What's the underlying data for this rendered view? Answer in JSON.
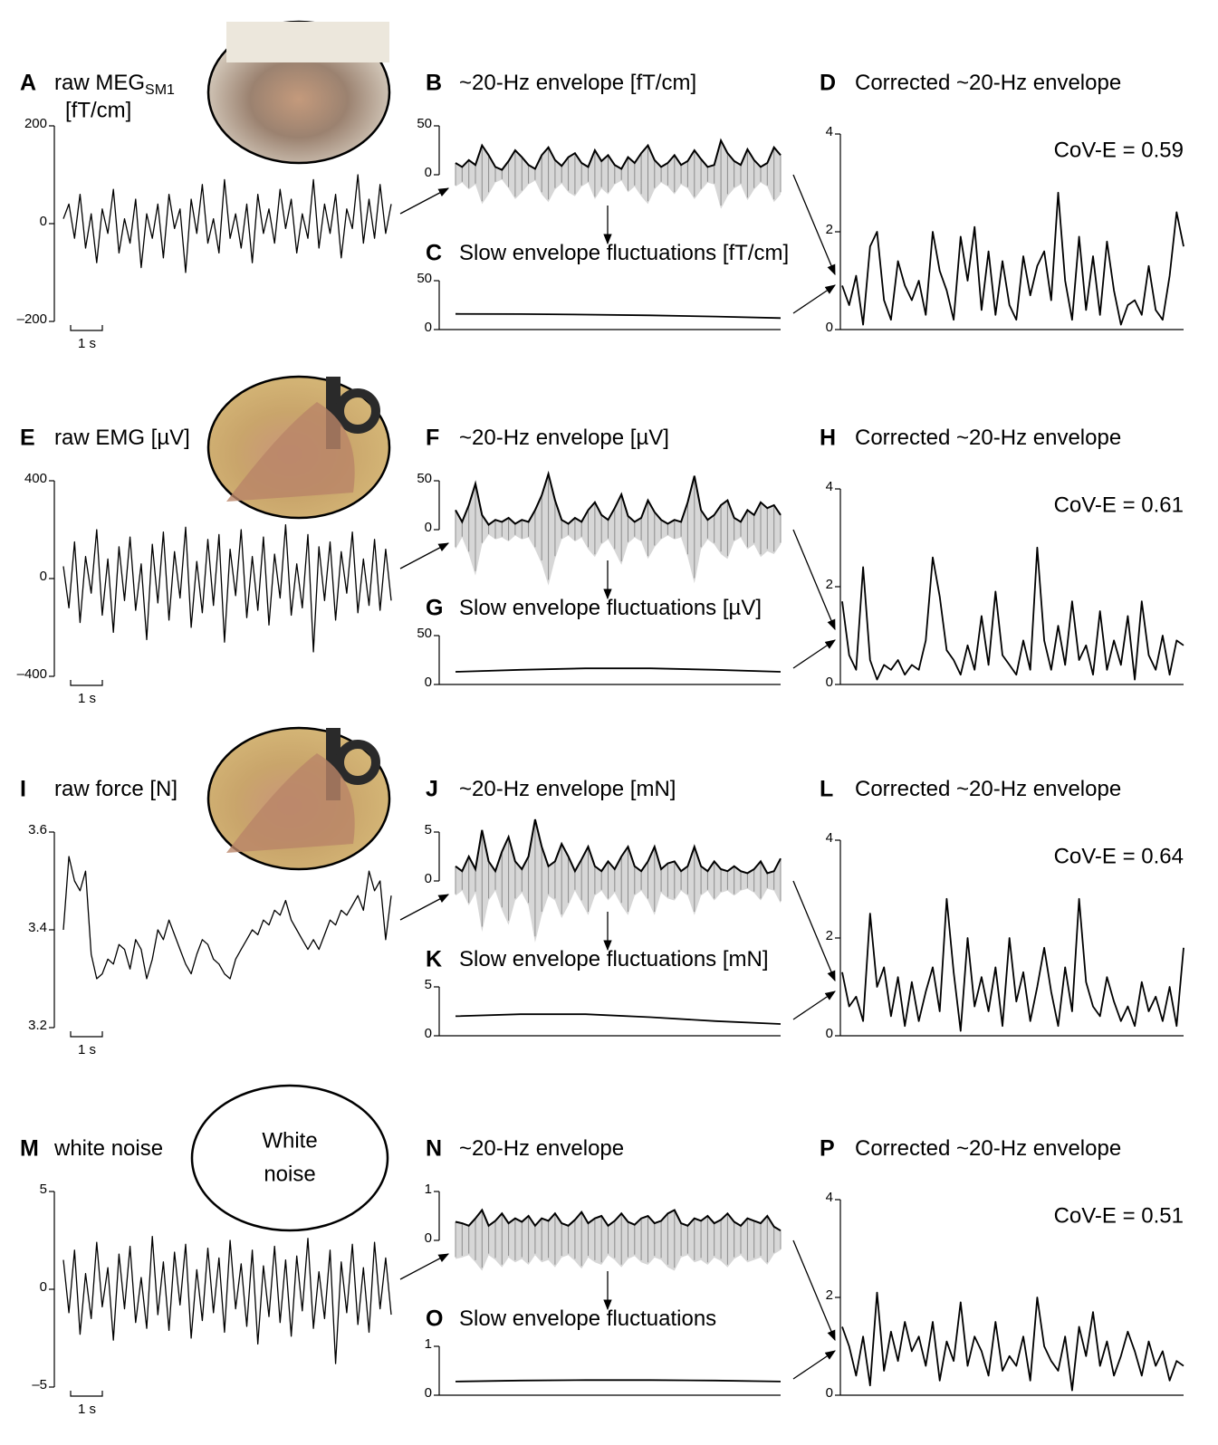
{
  "chart_data": [
    {
      "type": "line",
      "label": "A",
      "title": "raw MEG",
      "title_sub": "SM1",
      "unit": "[fT/cm]",
      "scale_label": "1 s",
      "color": "#000000",
      "ylim": [
        -200,
        200
      ],
      "yticks": [
        200,
        0,
        {
          "value": -200,
          "label": "–200"
        }
      ],
      "values": [
        10,
        40,
        -30,
        60,
        -50,
        20,
        -80,
        30,
        -20,
        70,
        -60,
        10,
        -40,
        50,
        -90,
        20,
        -30,
        40,
        -70,
        60,
        -10,
        30,
        -100,
        50,
        -20,
        80,
        -40,
        10,
        -60,
        90,
        -30,
        20,
        -50,
        40,
        -80,
        60,
        -20,
        30,
        -40,
        70,
        -10,
        50,
        -60,
        20,
        -30,
        90,
        -50,
        40,
        -20,
        60,
        -70,
        30,
        -10,
        100,
        -40,
        50,
        -30,
        80,
        -20,
        40
      ]
    },
    {
      "type": "envelope",
      "label": "B",
      "title": "~20-Hz envelope [fT/cm]",
      "color": "#000000",
      "fill_color": "#8c8c8c",
      "ylim": [
        -50,
        50
      ],
      "yticks": [
        0,
        50
      ],
      "values": [
        12,
        8,
        15,
        10,
        30,
        20,
        8,
        5,
        14,
        25,
        18,
        10,
        6,
        20,
        28,
        15,
        9,
        18,
        22,
        12,
        8,
        25,
        14,
        20,
        10,
        6,
        18,
        12,
        22,
        30,
        15,
        8,
        12,
        20,
        10,
        14,
        25,
        16,
        8,
        10,
        35,
        22,
        14,
        10,
        26,
        15,
        8,
        12,
        28,
        20
      ]
    },
    {
      "type": "line",
      "label": "C",
      "title": "Slow envelope fluctuations [fT/cm]",
      "color": "#000000",
      "ylim": [
        0,
        50
      ],
      "yticks": [
        0,
        50
      ],
      "values": [
        16,
        15.8,
        15.3,
        14.5,
        13.3,
        11.8
      ]
    },
    {
      "type": "line",
      "label": "D",
      "title": "Corrected ~20-Hz envelope",
      "annotation": "CoV-E = 0.59",
      "color": "#000000",
      "ylim": [
        0,
        4
      ],
      "yticks": [
        0,
        2,
        4
      ],
      "values": [
        0.9,
        0.5,
        1.1,
        0.1,
        1.7,
        2.0,
        0.6,
        0.2,
        1.4,
        0.9,
        0.6,
        1.0,
        0.3,
        2.0,
        1.2,
        0.8,
        0.2,
        1.9,
        1.0,
        2.1,
        0.4,
        1.6,
        0.3,
        1.4,
        0.5,
        0.2,
        1.5,
        0.7,
        1.3,
        1.6,
        0.6,
        2.8,
        1.0,
        0.2,
        1.9,
        0.4,
        1.5,
        0.3,
        1.8,
        0.8,
        0.1,
        0.5,
        0.6,
        0.3,
        1.3,
        0.4,
        0.2,
        1.1,
        2.4,
        1.7
      ]
    },
    {
      "type": "line",
      "label": "E",
      "title": "raw EMG [µV]",
      "scale_label": "1 s",
      "color": "#000000",
      "ylim": [
        -400,
        400
      ],
      "yticks": [
        400,
        0,
        {
          "value": -400,
          "label": "–400"
        }
      ],
      "values": [
        50,
        -120,
        150,
        -180,
        90,
        -60,
        200,
        -150,
        80,
        -220,
        130,
        -90,
        170,
        -130,
        60,
        -250,
        140,
        -100,
        190,
        -170,
        110,
        -80,
        210,
        -200,
        70,
        -140,
        160,
        -110,
        180,
        -260,
        120,
        -70,
        200,
        -160,
        90,
        -130,
        170,
        -190,
        100,
        -80,
        220,
        -150,
        60,
        -120,
        180,
        -300,
        130,
        -90,
        150,
        -170,
        110,
        -60,
        190,
        -140,
        80,
        -110,
        160,
        -130,
        120,
        -90
      ]
    },
    {
      "type": "envelope",
      "label": "F",
      "title": "~20-Hz envelope [µV]",
      "color": "#000000",
      "fill_color": "#8c8c8c",
      "ylim": [
        -50,
        50
      ],
      "yticks": [
        0,
        50
      ],
      "values": [
        20,
        8,
        25,
        47,
        15,
        5,
        10,
        8,
        12,
        6,
        10,
        8,
        20,
        35,
        57,
        30,
        10,
        6,
        12,
        8,
        20,
        28,
        15,
        10,
        22,
        36,
        14,
        8,
        12,
        30,
        18,
        10,
        6,
        10,
        8,
        28,
        55,
        20,
        10,
        15,
        25,
        30,
        12,
        8,
        20,
        15,
        28,
        22,
        25,
        15
      ]
    },
    {
      "type": "line",
      "label": "G",
      "title": "Slow envelope fluctuations [µV]",
      "color": "#000000",
      "ylim": [
        0,
        50
      ],
      "yticks": [
        0,
        50
      ],
      "values": [
        13,
        15,
        16.5,
        16.5,
        15,
        13
      ]
    },
    {
      "type": "line",
      "label": "H",
      "title": "Corrected ~20-Hz envelope",
      "annotation": "CoV-E = 0.61",
      "color": "#000000",
      "ylim": [
        0,
        4
      ],
      "yticks": [
        0,
        2,
        4
      ],
      "values": [
        1.7,
        0.6,
        0.3,
        2.4,
        0.5,
        0.1,
        0.4,
        0.3,
        0.5,
        0.2,
        0.4,
        0.3,
        0.9,
        2.6,
        1.8,
        0.7,
        0.5,
        0.2,
        0.8,
        0.3,
        1.4,
        0.4,
        1.9,
        0.6,
        0.4,
        0.2,
        0.9,
        0.3,
        2.8,
        0.9,
        0.3,
        1.2,
        0.4,
        1.7,
        0.5,
        0.8,
        0.2,
        1.5,
        0.3,
        0.9,
        0.4,
        1.4,
        0.1,
        1.7,
        0.6,
        0.3,
        1.0,
        0.2,
        0.9,
        0.8
      ]
    },
    {
      "type": "line",
      "label": "I",
      "title": "raw force [N]",
      "scale_label": "1 s",
      "color": "#000000",
      "ylim": [
        3.2,
        3.6
      ],
      "yticks": [
        3.6,
        3.4,
        3.2
      ],
      "values": [
        3.4,
        3.55,
        3.5,
        3.48,
        3.52,
        3.35,
        3.3,
        3.31,
        3.34,
        3.33,
        3.37,
        3.36,
        3.32,
        3.38,
        3.36,
        3.3,
        3.34,
        3.4,
        3.38,
        3.42,
        3.39,
        3.36,
        3.33,
        3.31,
        3.35,
        3.38,
        3.37,
        3.34,
        3.33,
        3.31,
        3.3,
        3.34,
        3.36,
        3.38,
        3.4,
        3.39,
        3.42,
        3.41,
        3.44,
        3.43,
        3.46,
        3.42,
        3.4,
        3.38,
        3.36,
        3.38,
        3.36,
        3.39,
        3.42,
        3.41,
        3.44,
        3.43,
        3.45,
        3.47,
        3.44,
        3.52,
        3.48,
        3.5,
        3.38,
        3.47
      ]
    },
    {
      "type": "envelope",
      "label": "J",
      "title": "~20-Hz envelope [mN]",
      "color": "#000000",
      "fill_color": "#8c8c8c",
      "ylim": [
        -5,
        5
      ],
      "yticks": [
        0,
        5
      ],
      "values": [
        1.5,
        1.0,
        2.5,
        1.2,
        5.2,
        2.0,
        1.0,
        3.0,
        4.5,
        2.0,
        1.2,
        2.5,
        6.3,
        3.5,
        1.5,
        2.0,
        3.8,
        2.5,
        1.0,
        2.2,
        3.5,
        1.5,
        1.0,
        2.0,
        1.2,
        2.5,
        3.5,
        1.5,
        1.0,
        2.0,
        3.5,
        1.2,
        1.8,
        2.0,
        1.0,
        1.5,
        3.5,
        1.5,
        1.0,
        2.0,
        1.2,
        1.0,
        1.5,
        1.0,
        0.8,
        1.2,
        2.0,
        0.8,
        1.0,
        2.3
      ]
    },
    {
      "type": "line",
      "label": "K",
      "title": "Slow envelope fluctuations [mN]",
      "color": "#000000",
      "ylim": [
        0,
        5
      ],
      "yticks": [
        0,
        5
      ],
      "values": [
        2,
        2.2,
        2.2,
        1.9,
        1.5,
        1.2
      ]
    },
    {
      "type": "line",
      "label": "L",
      "title": "Corrected ~20-Hz envelope",
      "annotation": "CoV-E = 0.64",
      "color": "#000000",
      "ylim": [
        0,
        4
      ],
      "yticks": [
        0,
        2,
        4
      ],
      "values": [
        1.3,
        0.6,
        0.8,
        0.3,
        2.5,
        1.0,
        1.4,
        0.4,
        1.2,
        0.2,
        1.1,
        0.3,
        0.9,
        1.4,
        0.5,
        2.8,
        1.3,
        0.1,
        2.0,
        0.6,
        1.2,
        0.5,
        1.4,
        0.2,
        2.0,
        0.7,
        1.3,
        0.3,
        1.0,
        1.8,
        0.9,
        0.2,
        1.4,
        0.5,
        2.8,
        1.1,
        0.6,
        0.4,
        1.2,
        0.7,
        0.3,
        0.6,
        0.2,
        1.1,
        0.5,
        0.8,
        0.3,
        1.0,
        0.2,
        1.8
      ]
    },
    {
      "type": "line",
      "label": "M",
      "title": "white noise",
      "inset_text": [
        "White",
        "noise"
      ],
      "scale_label": "1 s",
      "color": "#000000",
      "ylim": [
        -5,
        5
      ],
      "yticks": [
        5,
        0,
        {
          "value": -5,
          "label": "–5"
        }
      ],
      "values": [
        1.5,
        -1.2,
        2.0,
        -2.3,
        0.8,
        -1.5,
        2.4,
        -0.9,
        1.1,
        -2.6,
        1.8,
        -1.0,
        2.2,
        -1.7,
        0.6,
        -2.0,
        2.7,
        -1.3,
        1.4,
        -2.1,
        1.9,
        -0.8,
        2.3,
        -2.5,
        1.0,
        -1.6,
        2.1,
        -1.2,
        1.6,
        -2.2,
        2.5,
        -1.0,
        1.3,
        -1.9,
        2.0,
        -2.8,
        1.2,
        -1.4,
        2.2,
        -1.7,
        1.5,
        -2.4,
        1.7,
        -1.1,
        2.6,
        -2.0,
        0.9,
        -1.5,
        2.0,
        -3.8,
        1.4,
        -1.2,
        2.3,
        -1.8,
        1.1,
        -2.2,
        2.4,
        -1.0,
        1.6,
        -1.3
      ]
    },
    {
      "type": "envelope",
      "label": "N",
      "title": "~20-Hz envelope",
      "color": "#000000",
      "fill_color": "#8c8c8c",
      "ylim": [
        -1,
        1
      ],
      "yticks": [
        0,
        1
      ],
      "values": [
        0.38,
        0.35,
        0.3,
        0.45,
        0.62,
        0.3,
        0.4,
        0.55,
        0.35,
        0.45,
        0.38,
        0.5,
        0.3,
        0.45,
        0.4,
        0.55,
        0.35,
        0.3,
        0.42,
        0.58,
        0.35,
        0.45,
        0.5,
        0.3,
        0.4,
        0.55,
        0.38,
        0.32,
        0.45,
        0.5,
        0.35,
        0.4,
        0.55,
        0.62,
        0.35,
        0.3,
        0.45,
        0.4,
        0.5,
        0.35,
        0.42,
        0.55,
        0.38,
        0.3,
        0.45,
        0.4,
        0.35,
        0.5,
        0.28,
        0.2
      ]
    },
    {
      "type": "line",
      "label": "O",
      "title": "Slow envelope fluctuations",
      "color": "#000000",
      "ylim": [
        0,
        1
      ],
      "yticks": [
        0,
        1
      ],
      "values": [
        0.28,
        0.3,
        0.31,
        0.31,
        0.3,
        0.28
      ]
    },
    {
      "type": "line",
      "label": "P",
      "title": "Corrected ~20-Hz envelope",
      "annotation": "CoV-E = 0.51",
      "color": "#000000",
      "ylim": [
        0,
        4
      ],
      "yticks": [
        0,
        2,
        4
      ],
      "values": [
        1.4,
        1.0,
        0.4,
        1.2,
        0.2,
        2.1,
        0.5,
        1.3,
        0.7,
        1.5,
        0.9,
        1.2,
        0.6,
        1.5,
        0.3,
        1.1,
        0.7,
        1.9,
        0.6,
        1.2,
        0.9,
        0.4,
        1.5,
        0.5,
        0.8,
        0.6,
        1.2,
        0.3,
        2.0,
        1.0,
        0.7,
        0.5,
        1.2,
        0.1,
        1.4,
        0.8,
        1.7,
        0.6,
        1.1,
        0.4,
        0.8,
        1.3,
        0.9,
        0.4,
        1.1,
        0.6,
        0.9,
        0.3,
        0.7,
        0.6
      ]
    }
  ]
}
